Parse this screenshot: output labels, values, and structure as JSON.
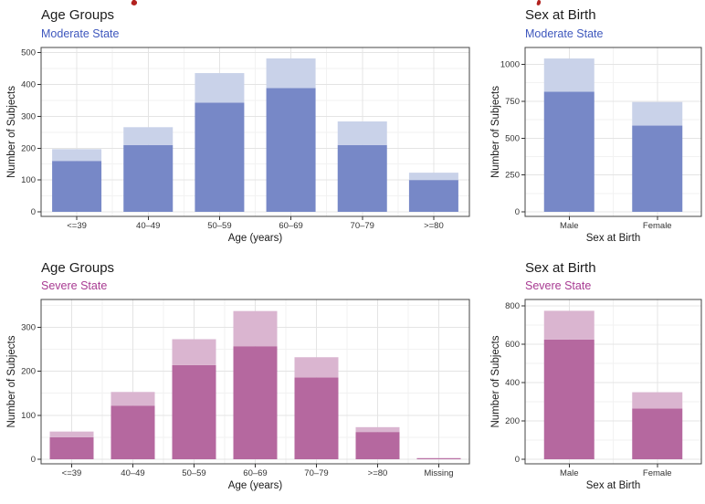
{
  "figure": {
    "background": "#ffffff",
    "clipped_red_header": {
      "color": "#b2221f",
      "fragments_count": 2
    }
  },
  "palette": {
    "grid_major": "#e4e4e4",
    "grid_minor": "#f2f2f2",
    "panel_border": "#454545",
    "axis_text": "#333333",
    "title_text": "#1c1c1c"
  },
  "chart_data": [
    {
      "id": "age-groups-moderate",
      "type": "bar",
      "stacked": true,
      "title": "Age Groups",
      "subtitle": "Moderate State",
      "subtitle_color": "#3e57bd",
      "xlabel": "Age (years)",
      "ylabel": "Number of Subjects",
      "categories": [
        "<=39",
        "40–49",
        "50–59",
        "60–69",
        "70–79",
        ">=80"
      ],
      "series": [
        {
          "name": "lower-segment",
          "color": "#7788c7",
          "values": [
            160,
            210,
            343,
            389,
            210,
            100
          ]
        },
        {
          "name": "upper-segment",
          "color": "#c9d2e9",
          "values": [
            37,
            56,
            93,
            93,
            74,
            23
          ]
        }
      ],
      "totals": [
        197,
        266,
        436,
        482,
        284,
        123
      ],
      "yticks": [
        0,
        100,
        200,
        300,
        400,
        500
      ],
      "ylim": [
        0,
        505
      ],
      "grid": "major+minor",
      "legend": "none"
    },
    {
      "id": "sex-at-birth-moderate",
      "type": "bar",
      "stacked": true,
      "title": "Sex at Birth",
      "subtitle": "Moderate State",
      "subtitle_color": "#3e57bd",
      "xlabel": "Sex at Birth",
      "ylabel": "Number of Subjects",
      "categories": [
        "Male",
        "Female"
      ],
      "series": [
        {
          "name": "lower-segment",
          "color": "#7788c7",
          "values": [
            815,
            585
          ]
        },
        {
          "name": "upper-segment",
          "color": "#c9d2e9",
          "values": [
            225,
            160
          ]
        }
      ],
      "totals": [
        1040,
        745
      ],
      "yticks": [
        0,
        250,
        500,
        750,
        1000
      ],
      "ylim": [
        0,
        1090
      ],
      "grid": "major+minor",
      "legend": "none"
    },
    {
      "id": "age-groups-severe",
      "type": "bar",
      "stacked": true,
      "title": "Age Groups",
      "subtitle": "Severe State",
      "subtitle_color": "#a83b92",
      "xlabel": "Age (years)",
      "ylabel": "Number of Subjects",
      "categories": [
        "<=39",
        "40–49",
        "50–59",
        "60–69",
        "70–79",
        ">=80",
        "Missing"
      ],
      "series": [
        {
          "name": "lower-segment",
          "color": "#b5689f",
          "values": [
            50,
            122,
            214,
            257,
            186,
            62,
            2
          ]
        },
        {
          "name": "upper-segment",
          "color": "#dab5d0",
          "values": [
            13,
            31,
            59,
            80,
            46,
            11,
            1
          ]
        }
      ],
      "totals": [
        63,
        153,
        273,
        337,
        232,
        73,
        3
      ],
      "yticks": [
        0,
        100,
        200,
        300
      ],
      "ylim": [
        0,
        355
      ],
      "grid": "major+minor",
      "legend": "none"
    },
    {
      "id": "sex-at-birth-severe",
      "type": "bar",
      "stacked": true,
      "title": "Sex at Birth",
      "subtitle": "Severe State",
      "subtitle_color": "#a83b92",
      "xlabel": "Sex at Birth",
      "ylabel": "Number of Subjects",
      "categories": [
        "Male",
        "Female"
      ],
      "series": [
        {
          "name": "lower-segment",
          "color": "#b5689f",
          "values": [
            625,
            265
          ]
        },
        {
          "name": "upper-segment",
          "color": "#dab5d0",
          "values": [
            150,
            85
          ]
        }
      ],
      "totals": [
        775,
        350
      ],
      "yticks": [
        0,
        200,
        400,
        600,
        800
      ],
      "ylim": [
        0,
        815
      ],
      "grid": "major+minor",
      "legend": "none"
    }
  ]
}
